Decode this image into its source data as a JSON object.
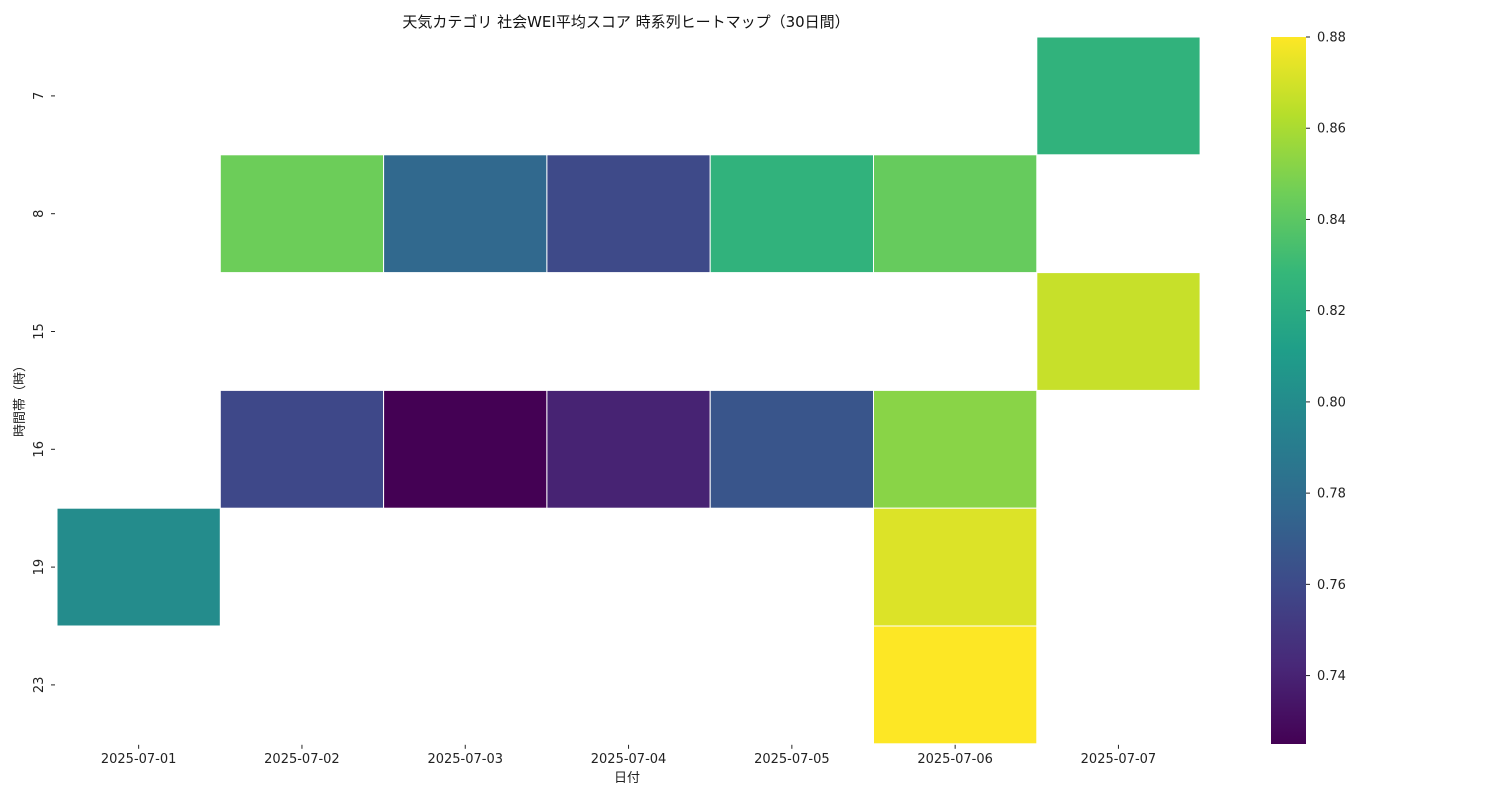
{
  "chart_data": {
    "type": "heatmap",
    "title": "天気カテゴリ 社会WEI平均スコア 時系列ヒートマップ（30日間）",
    "xlabel": "日付",
    "ylabel": "時間帯（時）",
    "x": [
      "2025-07-01",
      "2025-07-02",
      "2025-07-03",
      "2025-07-04",
      "2025-07-05",
      "2025-07-06",
      "2025-07-07"
    ],
    "y": [
      "7",
      "8",
      "15",
      "16",
      "19",
      "23"
    ],
    "values": [
      [
        null,
        null,
        null,
        null,
        null,
        null,
        0.825
      ],
      [
        null,
        0.845,
        0.777,
        0.76,
        0.825,
        0.843,
        null
      ],
      [
        null,
        null,
        null,
        null,
        null,
        null,
        0.867
      ],
      [
        null,
        0.759,
        0.725,
        0.74,
        0.766,
        0.852,
        null
      ],
      [
        0.8,
        null,
        null,
        null,
        null,
        0.872,
        null
      ],
      [
        null,
        null,
        null,
        null,
        null,
        0.88,
        null
      ]
    ],
    "colorscale": "viridis",
    "vmin": 0.725,
    "vmax": 0.88,
    "colorbar_ticks": [
      "0.74",
      "0.76",
      "0.78",
      "0.80",
      "0.82",
      "0.84",
      "0.86",
      "0.88"
    ],
    "grid": false,
    "legend": "colorbar-right"
  }
}
